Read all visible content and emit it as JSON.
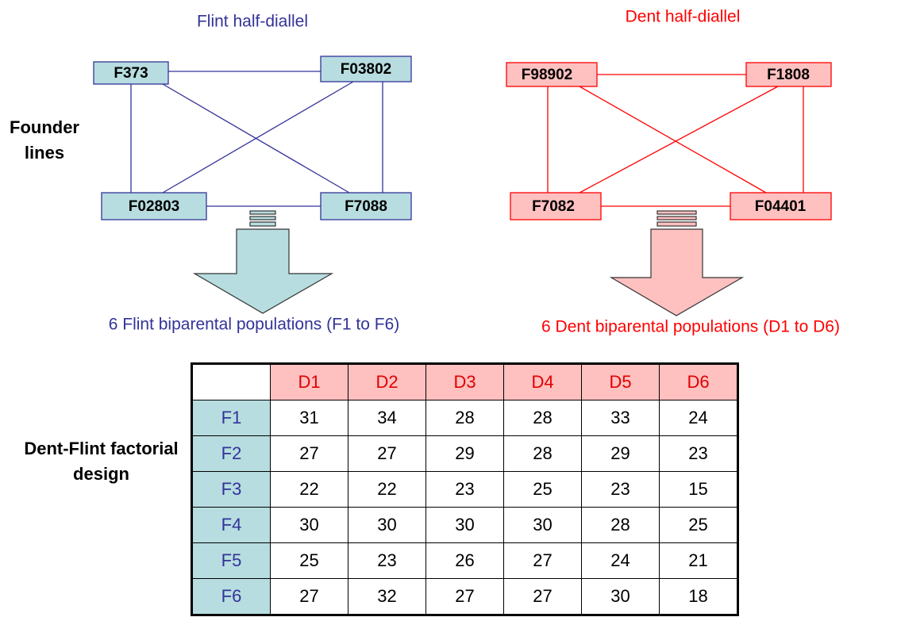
{
  "flint": {
    "title": "Flint half-diallel",
    "lines": [
      "F373",
      "F03802",
      "F02803",
      "F7088"
    ],
    "caption": "6 Flint biparental populations (F1 to F6)"
  },
  "dent": {
    "title": "Dent half-diallel",
    "lines": [
      "F98902",
      "F1808",
      "F7082",
      "F04401"
    ],
    "caption": "6 Dent biparental populations (D1 to D6)"
  },
  "founder_label": "Founder lines",
  "table": {
    "label": "Dent-Flint factorial design",
    "columns": [
      "D1",
      "D2",
      "D3",
      "D4",
      "D5",
      "D6"
    ],
    "rows": [
      {
        "label": "F1",
        "values": [
          31,
          34,
          28,
          28,
          33,
          24
        ]
      },
      {
        "label": "F2",
        "values": [
          27,
          27,
          29,
          28,
          29,
          23
        ]
      },
      {
        "label": "F3",
        "values": [
          22,
          22,
          23,
          25,
          23,
          15
        ]
      },
      {
        "label": "F4",
        "values": [
          30,
          30,
          30,
          30,
          28,
          25
        ]
      },
      {
        "label": "F5",
        "values": [
          25,
          23,
          26,
          27,
          24,
          21
        ]
      },
      {
        "label": "F6",
        "values": [
          27,
          32,
          27,
          27,
          30,
          18
        ]
      }
    ]
  }
}
